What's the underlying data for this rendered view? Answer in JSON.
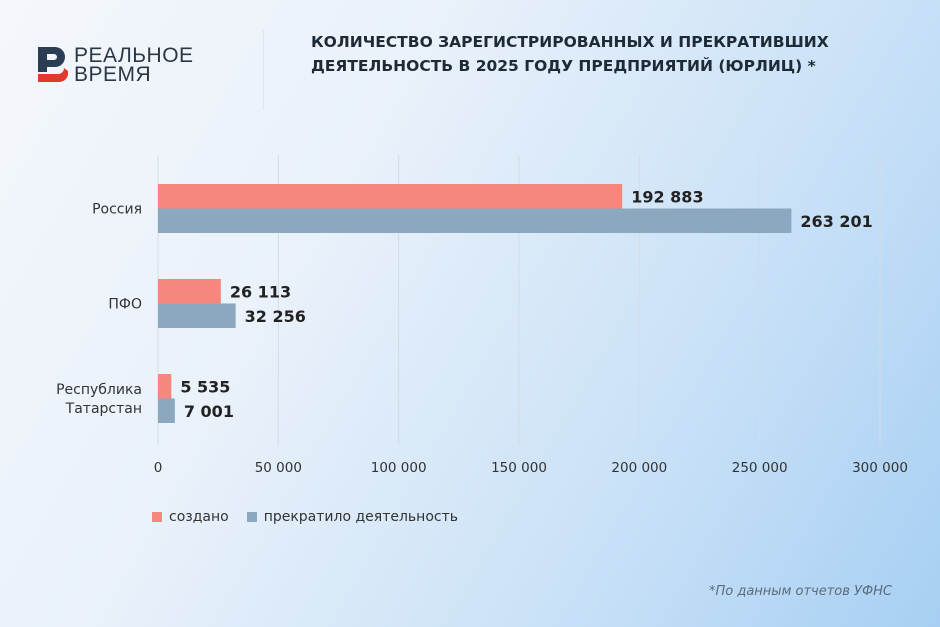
{
  "logo": {
    "line1": "РЕАЛЬНОЕ",
    "line2": "ВРЕМЯ"
  },
  "title": "КОЛИЧЕСТВО ЗАРЕГИСТРИРОВАННЫХ И ПРЕКРАТИВШИХ ДЕЯТЕЛЬНОСТЬ В 2025 ГОДУ ПРЕДПРИЯТИЙ (ЮРЛИЦ) *",
  "footnote": "*По данным отчетов УФНС",
  "chart_data": {
    "type": "bar",
    "orientation": "horizontal",
    "categories": [
      "Россия",
      "ПФО",
      "Республика Татарстан"
    ],
    "category_lines": [
      [
        "Россия"
      ],
      [
        "ПФО"
      ],
      [
        "Республика",
        "Татарстан"
      ]
    ],
    "series": [
      {
        "name": "создано",
        "color": "#f7877d",
        "values": [
          192883,
          26113,
          5535
        ],
        "labels": [
          "192 883",
          "26 113",
          "5 535"
        ]
      },
      {
        "name": "прекратило деятельность",
        "color": "#8ba8bf",
        "values": [
          263201,
          32256,
          7001
        ],
        "labels": [
          "263 201",
          "32 256",
          "7 001"
        ]
      }
    ],
    "xlim": [
      0,
      300000
    ],
    "ticks": [
      0,
      50000,
      100000,
      150000,
      200000,
      250000,
      300000
    ],
    "tick_labels": [
      "0",
      "50 000",
      "100 000",
      "150 000",
      "200 000",
      "250 000",
      "300 000"
    ],
    "grid": true,
    "legend": "bottom-left"
  }
}
